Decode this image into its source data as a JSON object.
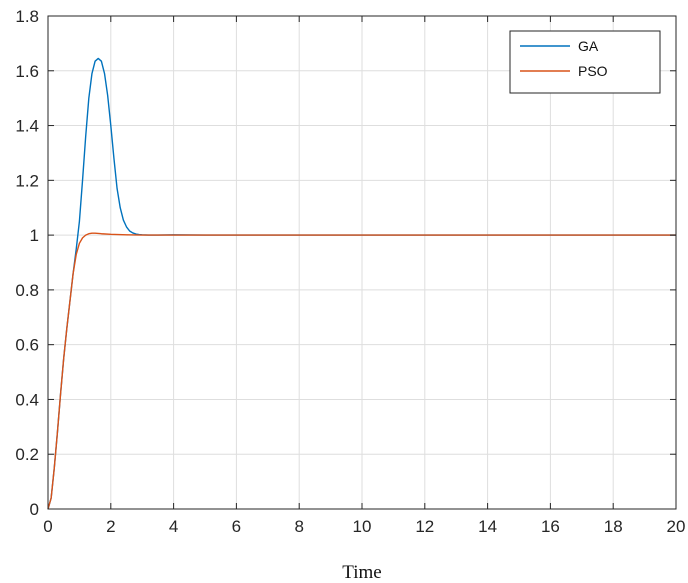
{
  "chart_data": {
    "type": "line",
    "title": "",
    "xlabel": "Time",
    "ylabel": "",
    "xlim": [
      0,
      20
    ],
    "ylim": [
      0,
      1.8
    ],
    "xticks": [
      0,
      2,
      4,
      6,
      8,
      10,
      12,
      14,
      16,
      18,
      20
    ],
    "yticks": [
      0,
      0.2,
      0.4,
      0.6,
      0.8,
      1,
      1.2,
      1.4,
      1.6,
      1.8
    ],
    "grid": true,
    "legend": "top-right",
    "series": [
      {
        "name": "GA",
        "color": "#0072BD",
        "x": [
          0,
          0.1,
          0.2,
          0.3,
          0.4,
          0.5,
          0.6,
          0.7,
          0.8,
          0.9,
          1.0,
          1.1,
          1.2,
          1.3,
          1.4,
          1.5,
          1.6,
          1.7,
          1.8,
          1.9,
          2.0,
          2.1,
          2.2,
          2.3,
          2.4,
          2.5,
          2.6,
          2.7,
          2.8,
          2.9,
          3.0,
          3.2,
          3.5,
          4.0,
          5,
          6,
          8,
          10,
          12,
          14,
          16,
          18,
          20
        ],
        "y": [
          0,
          0.04,
          0.15,
          0.28,
          0.42,
          0.55,
          0.66,
          0.76,
          0.86,
          0.95,
          1.05,
          1.2,
          1.36,
          1.5,
          1.59,
          1.635,
          1.645,
          1.635,
          1.59,
          1.51,
          1.4,
          1.28,
          1.17,
          1.1,
          1.055,
          1.03,
          1.015,
          1.008,
          1.004,
          1.002,
          1.001,
          1.0,
          1.0,
          1.001,
          1.0,
          1.0,
          1.0,
          1.0,
          1.0,
          1.0,
          1.0,
          1.0,
          1.0
        ]
      },
      {
        "name": "PSO",
        "color": "#D95319",
        "x": [
          0,
          0.1,
          0.2,
          0.3,
          0.4,
          0.5,
          0.6,
          0.7,
          0.8,
          0.9,
          1.0,
          1.1,
          1.2,
          1.3,
          1.4,
          1.5,
          1.7,
          2.0,
          2.5,
          3.0,
          4,
          6,
          8,
          10,
          12,
          14,
          16,
          18,
          20
        ],
        "y": [
          0,
          0.04,
          0.15,
          0.28,
          0.42,
          0.55,
          0.66,
          0.76,
          0.86,
          0.93,
          0.97,
          0.99,
          1.0,
          1.005,
          1.007,
          1.007,
          1.005,
          1.003,
          1.001,
          1.0,
          1.0,
          1.0,
          1.0,
          1.0,
          1.0,
          1.0,
          1.0,
          1.0,
          1.0
        ]
      }
    ]
  }
}
